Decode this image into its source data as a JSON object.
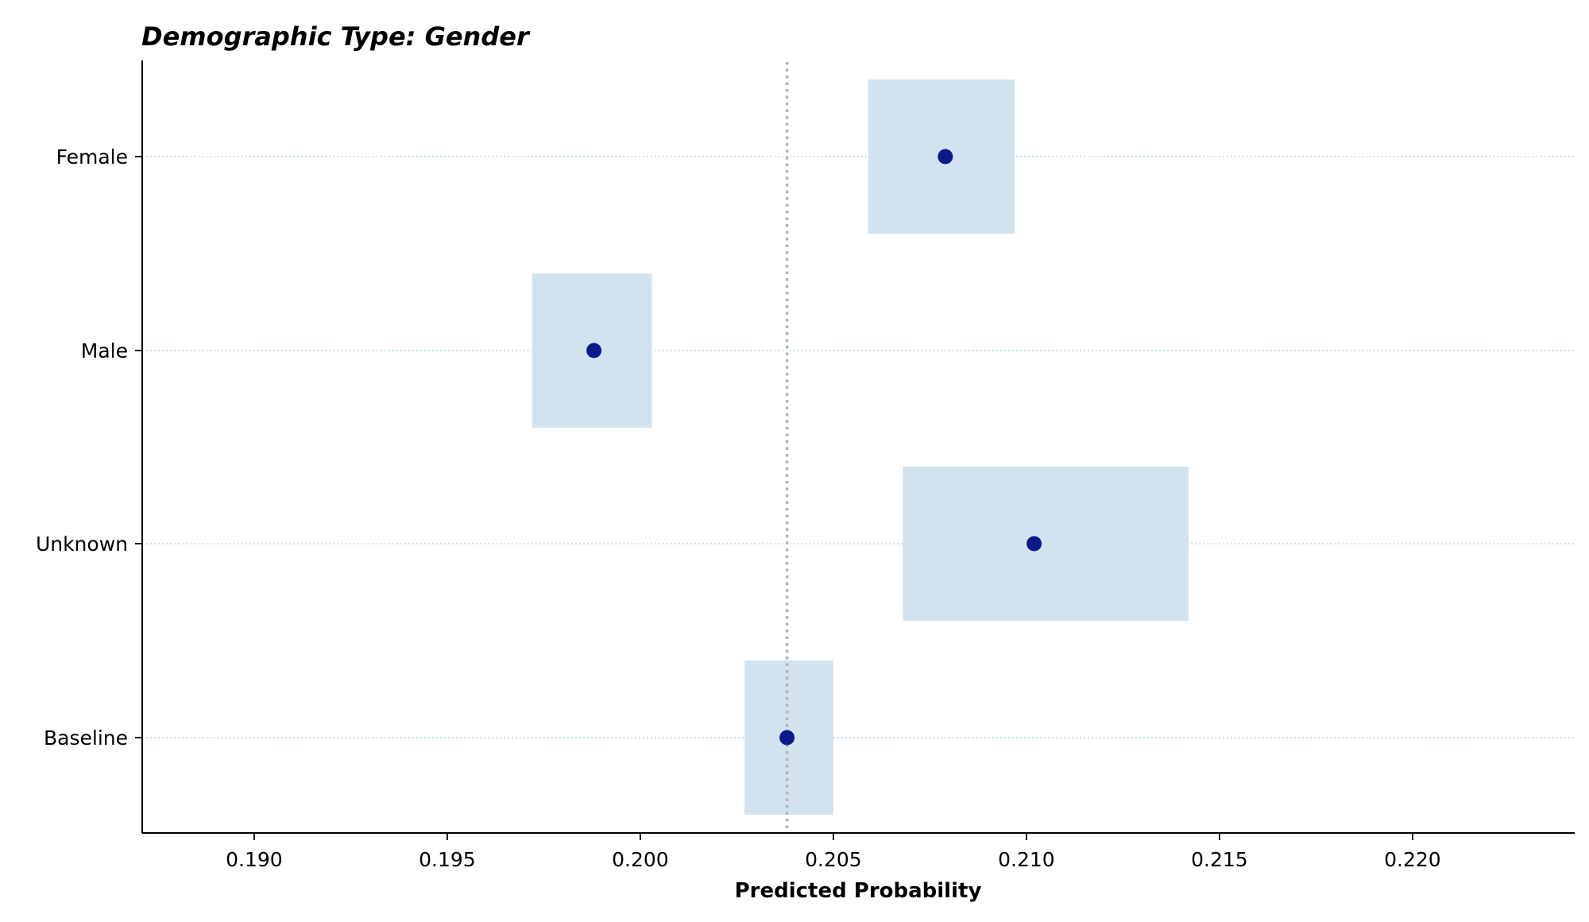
{
  "chart_data": {
    "type": "scatter",
    "title": "Demographic Type: Gender",
    "xlabel": "Predicted Probability",
    "ylabel": "",
    "xlim": [
      0.1871,
      0.2242
    ],
    "x_ticks": [
      0.19,
      0.195,
      0.2,
      0.205,
      0.21,
      0.215,
      0.22
    ],
    "x_tick_labels": [
      "0.190",
      "0.195",
      "0.200",
      "0.205",
      "0.210",
      "0.215",
      "0.220"
    ],
    "categories": [
      "Female",
      "Male",
      "Unknown",
      "Baseline"
    ],
    "points": [
      {
        "category": "Female",
        "value": 0.2079,
        "ci_low": 0.2059,
        "ci_high": 0.2097
      },
      {
        "category": "Male",
        "value": 0.1988,
        "ci_low": 0.1972,
        "ci_high": 0.2003
      },
      {
        "category": "Unknown",
        "value": 0.2102,
        "ci_low": 0.2068,
        "ci_high": 0.2142
      },
      {
        "category": "Baseline",
        "value": 0.2038,
        "ci_low": 0.2027,
        "ci_high": 0.205
      }
    ],
    "reference_line": 0.2038,
    "grid": "horizontal dotted",
    "colors": {
      "point": "#0a1a8a",
      "ci_box": "#d2e3ef",
      "reference_line": "#b0b4b8",
      "grid": "#a9d3e0"
    }
  }
}
